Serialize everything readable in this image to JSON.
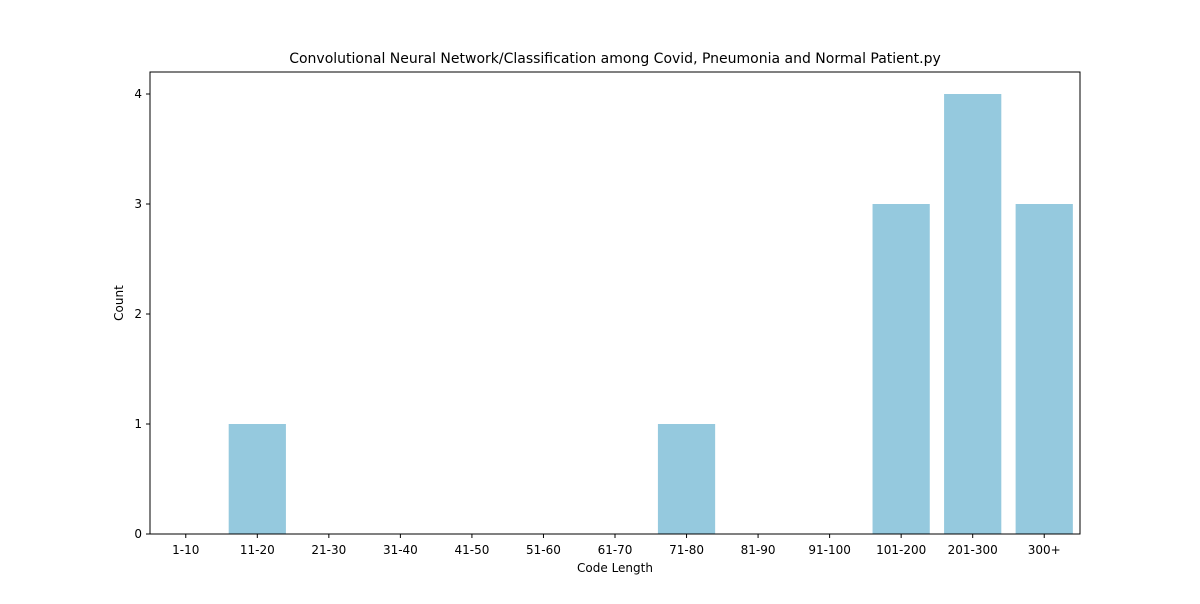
{
  "chart_data": {
    "type": "bar",
    "title": "Convolutional Neural Network/Classification among Covid, Pneumonia and Normal Patient.py",
    "xlabel": "Code Length",
    "ylabel": "Count",
    "categories": [
      "1-10",
      "11-20",
      "21-30",
      "31-40",
      "41-50",
      "51-60",
      "61-70",
      "71-80",
      "81-90",
      "91-100",
      "101-200",
      "201-300",
      "300+"
    ],
    "values": [
      0,
      1,
      0,
      0,
      0,
      0,
      0,
      1,
      0,
      0,
      3,
      4,
      3
    ],
    "ylim": [
      0,
      4.2
    ],
    "yticks": [
      0,
      1,
      2,
      3,
      4
    ],
    "grid": false,
    "bar_color": "#95c9de"
  }
}
